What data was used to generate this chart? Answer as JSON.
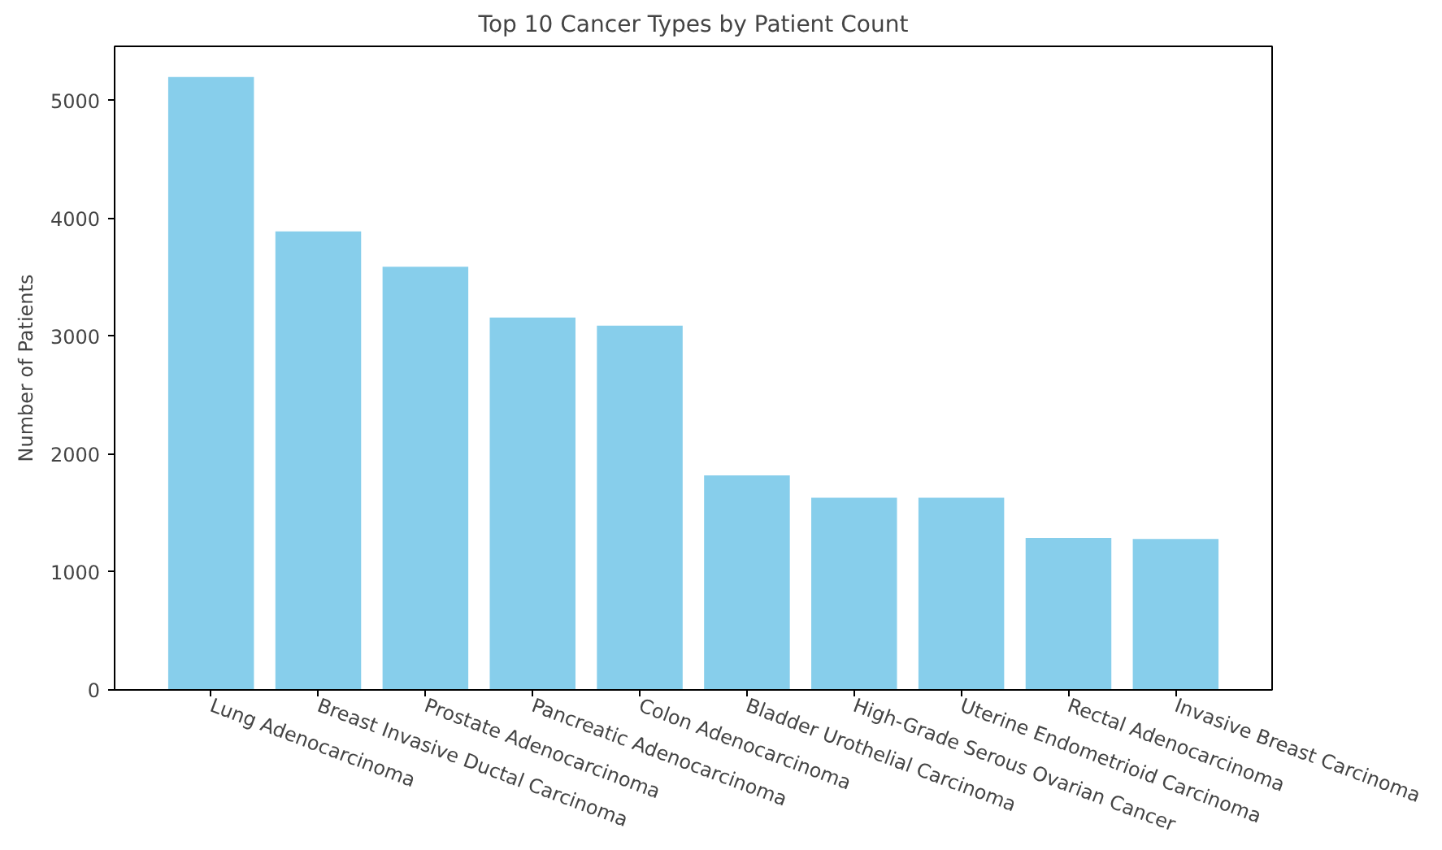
{
  "chart_data": {
    "type": "bar",
    "title": "Top 10 Cancer Types by Patient Count",
    "ylabel": "Number of Patients",
    "categories": [
      "Lung Adenocarcinoma",
      "Breast Invasive Ductal Carcinoma",
      "Prostate Adenocarcinoma",
      "Pancreatic Adenocarcinoma",
      "Colon Adenocarcinoma",
      "Bladder Urothelial Carcinoma",
      "High-Grade Serous Ovarian Cancer",
      "Uterine Endometrioid Carcinoma",
      "Rectal Adenocarcinoma",
      "Invasive Breast Carcinoma"
    ],
    "values": [
      5200,
      3890,
      3590,
      3160,
      3090,
      1820,
      1630,
      1630,
      1290,
      1280
    ],
    "color": "#87ceeb",
    "ylim": [
      0,
      5460
    ],
    "yticks": [
      0,
      1000,
      2000,
      3000,
      4000,
      5000
    ],
    "grid": false
  }
}
